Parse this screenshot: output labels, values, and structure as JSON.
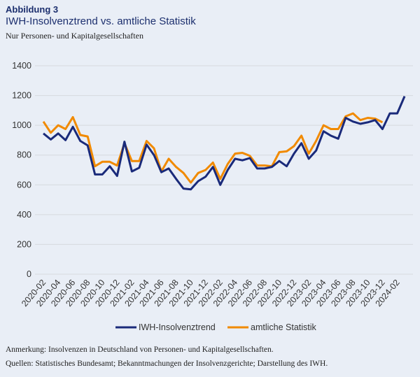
{
  "heading": "Abbildung 3",
  "chart_data": {
    "type": "line",
    "title": "IWH-Insolvenztrend vs. amtliche Statistik",
    "subtitle": "Nur Personen- und Kapitalgesellschaften",
    "categories": [
      "2020-02",
      null,
      "2020-04",
      null,
      "2020-06",
      null,
      "2020-08",
      null,
      "2020-10",
      null,
      "2020-12",
      null,
      "2021-02",
      null,
      "2021-04",
      null,
      "2021-06",
      null,
      "2021-08",
      null,
      "2021-10",
      null,
      "2021-12",
      null,
      "2022-02",
      null,
      "2022-04",
      null,
      "2022-06",
      null,
      "2022-08",
      null,
      "2022-10",
      null,
      "2022-12",
      null,
      "2023-02",
      null,
      "2023-04",
      null,
      "2023-06",
      null,
      "2023-08",
      null,
      "2023-10",
      null,
      "2023-12",
      null,
      "2024-02",
      null
    ],
    "series": [
      {
        "name": "IWH-Insolvenztrend",
        "color": "#1a2a7a",
        "values": [
          945,
          905,
          945,
          900,
          990,
          895,
          865,
          670,
          670,
          725,
          660,
          890,
          690,
          715,
          870,
          800,
          685,
          710,
          640,
          575,
          570,
          625,
          655,
          720,
          600,
          700,
          775,
          765,
          780,
          710,
          710,
          720,
          760,
          725,
          810,
          880,
          775,
          830,
          960,
          930,
          910,
          1050,
          1025,
          1010,
          1020,
          1035,
          975,
          1080,
          1080,
          1195
        ]
      },
      {
        "name": "amtliche Statistik",
        "color": "#f18a00",
        "values": [
          1025,
          950,
          1000,
          975,
          1055,
          935,
          925,
          725,
          755,
          755,
          730,
          880,
          760,
          760,
          895,
          845,
          690,
          775,
          720,
          680,
          615,
          680,
          700,
          750,
          640,
          740,
          810,
          815,
          795,
          730,
          730,
          725,
          820,
          825,
          860,
          930,
          810,
          895,
          1000,
          975,
          975,
          1060,
          1080,
          1035,
          1050,
          1045,
          1020,
          null,
          null,
          null
        ]
      }
    ],
    "ylim": [
      0,
      1400
    ],
    "yticks": [
      0,
      200,
      400,
      600,
      800,
      1000,
      1200,
      1400
    ],
    "grid": true,
    "legend": "bottom"
  },
  "notes": [
    "Anmerkung: Insolvenzen in Deutschland von Personen- und Kapitalgesellschaften.",
    "Quellen: Statistisches Bundesamt; Bekanntmachungen der Insolvenzgerichte; Darstellung des IWH."
  ]
}
